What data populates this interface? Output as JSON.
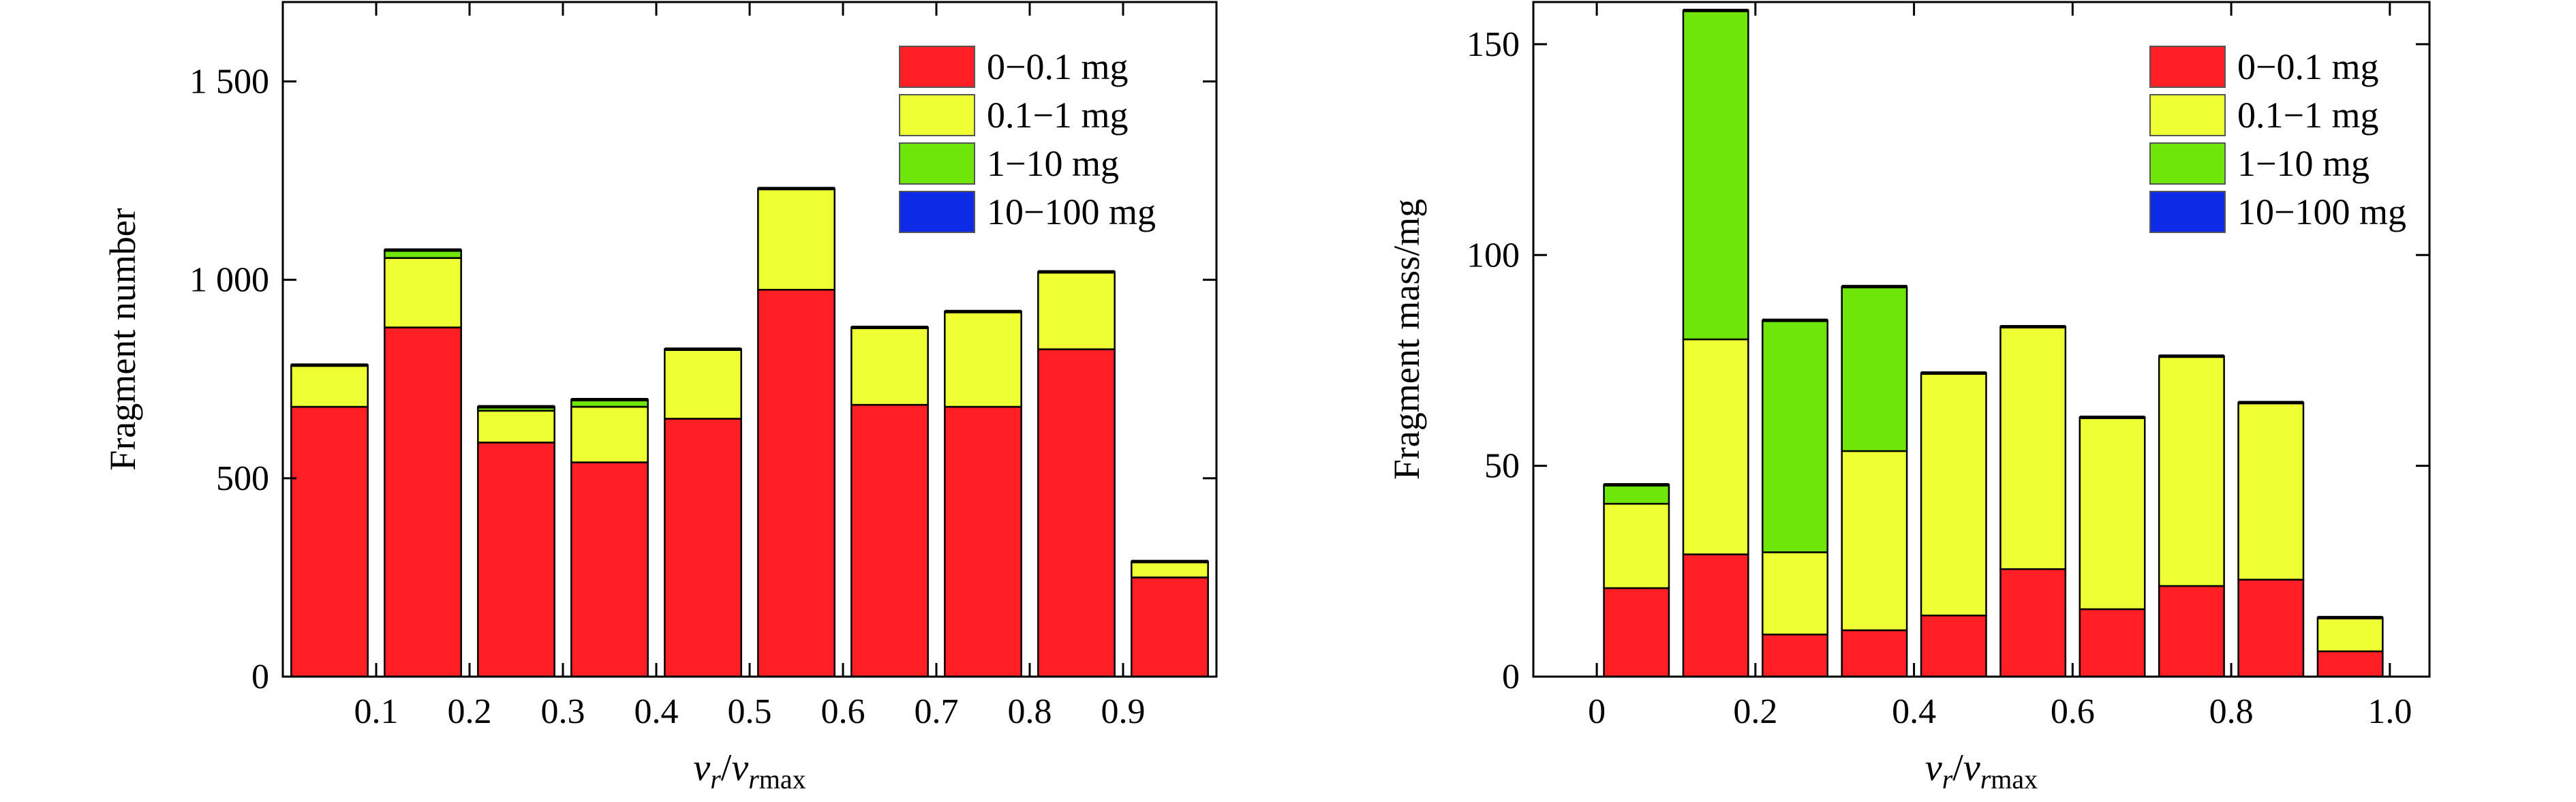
{
  "chart_data": [
    {
      "type": "bar",
      "stacked": true,
      "x_edges": [
        0,
        0.1,
        0.2,
        0.3,
        0.4,
        0.5,
        0.6,
        0.7,
        0.8,
        0.9,
        1.0
      ],
      "x_tick_labels": [
        "0.1",
        "0.2",
        "0.3",
        "0.4",
        "0.5",
        "0.6",
        "0.7",
        "0.8",
        "0.9"
      ],
      "y_ticks": [
        0,
        500,
        1000,
        1500
      ],
      "y_tick_labels": [
        "0",
        "500",
        "1 000",
        "1 500"
      ],
      "ylim": [
        0,
        1700
      ],
      "xlabel_main": "v",
      "xlabel_sub1": "r",
      "xlabel_slash": "/",
      "xlabel_main2": "v",
      "xlabel_sub2": "r",
      "xlabel_sub3": "max",
      "ylabel": "Fragment number",
      "legend_position": "top-right",
      "series": [
        {
          "name": "0−0.1 mg",
          "color": "#ff1f24",
          "values": [
            680,
            880,
            590,
            540,
            650,
            975,
            685,
            680,
            825,
            250
          ]
        },
        {
          "name": "0.1−1 mg",
          "color": "#eeff33",
          "values": [
            105,
            175,
            80,
            140,
            175,
            255,
            195,
            240,
            195,
            40
          ]
        },
        {
          "name": "1−10 mg",
          "color": "#6ee60a",
          "values": [
            0,
            20,
            10,
            18,
            0,
            0,
            0,
            0,
            0,
            0
          ]
        },
        {
          "name": "10−100 mg",
          "color": "#0d2be6",
          "values": [
            0,
            0,
            0,
            0,
            0,
            0,
            0,
            0,
            0,
            0
          ]
        }
      ]
    },
    {
      "type": "bar",
      "stacked": true,
      "x_centers": [
        0.05,
        0.15,
        0.25,
        0.35,
        0.45,
        0.55,
        0.65,
        0.75,
        0.85,
        0.95
      ],
      "xlim": [
        -0.08,
        1.05
      ],
      "x_ticks": [
        0,
        0.2,
        0.4,
        0.6,
        0.8,
        1.0
      ],
      "x_tick_labels": [
        "0",
        "0.2",
        "0.4",
        "0.6",
        "0.8",
        "1.0"
      ],
      "y_ticks": [
        0,
        50,
        100,
        150
      ],
      "y_tick_labels": [
        "0",
        "50",
        "100",
        "150"
      ],
      "ylim": [
        0,
        160
      ],
      "xlabel_main": "v",
      "xlabel_sub1": "r",
      "xlabel_slash": "/",
      "xlabel_main2": "v",
      "xlabel_sub2": "r",
      "xlabel_sub3": "max",
      "ylabel": "Fragment mass/mg",
      "legend_position": "top-right",
      "series": [
        {
          "name": "0−0.1 mg",
          "color": "#ff1f24",
          "values": [
            21,
            29,
            10,
            11,
            14.5,
            25.5,
            16,
            21.5,
            23,
            6
          ]
        },
        {
          "name": "0.1−1 mg",
          "color": "#eeff33",
          "values": [
            20,
            51,
            19.5,
            42.5,
            57.5,
            57.5,
            45.5,
            54.5,
            42,
            8
          ]
        },
        {
          "name": "1−10 mg",
          "color": "#6ee60a",
          "values": [
            4.5,
            78,
            55,
            39,
            0,
            0,
            0,
            0,
            0,
            0
          ]
        },
        {
          "name": "10−100 mg",
          "color": "#0d2be6",
          "values": [
            0,
            0,
            0,
            0,
            0,
            0,
            0,
            0,
            0,
            0
          ]
        }
      ]
    }
  ]
}
